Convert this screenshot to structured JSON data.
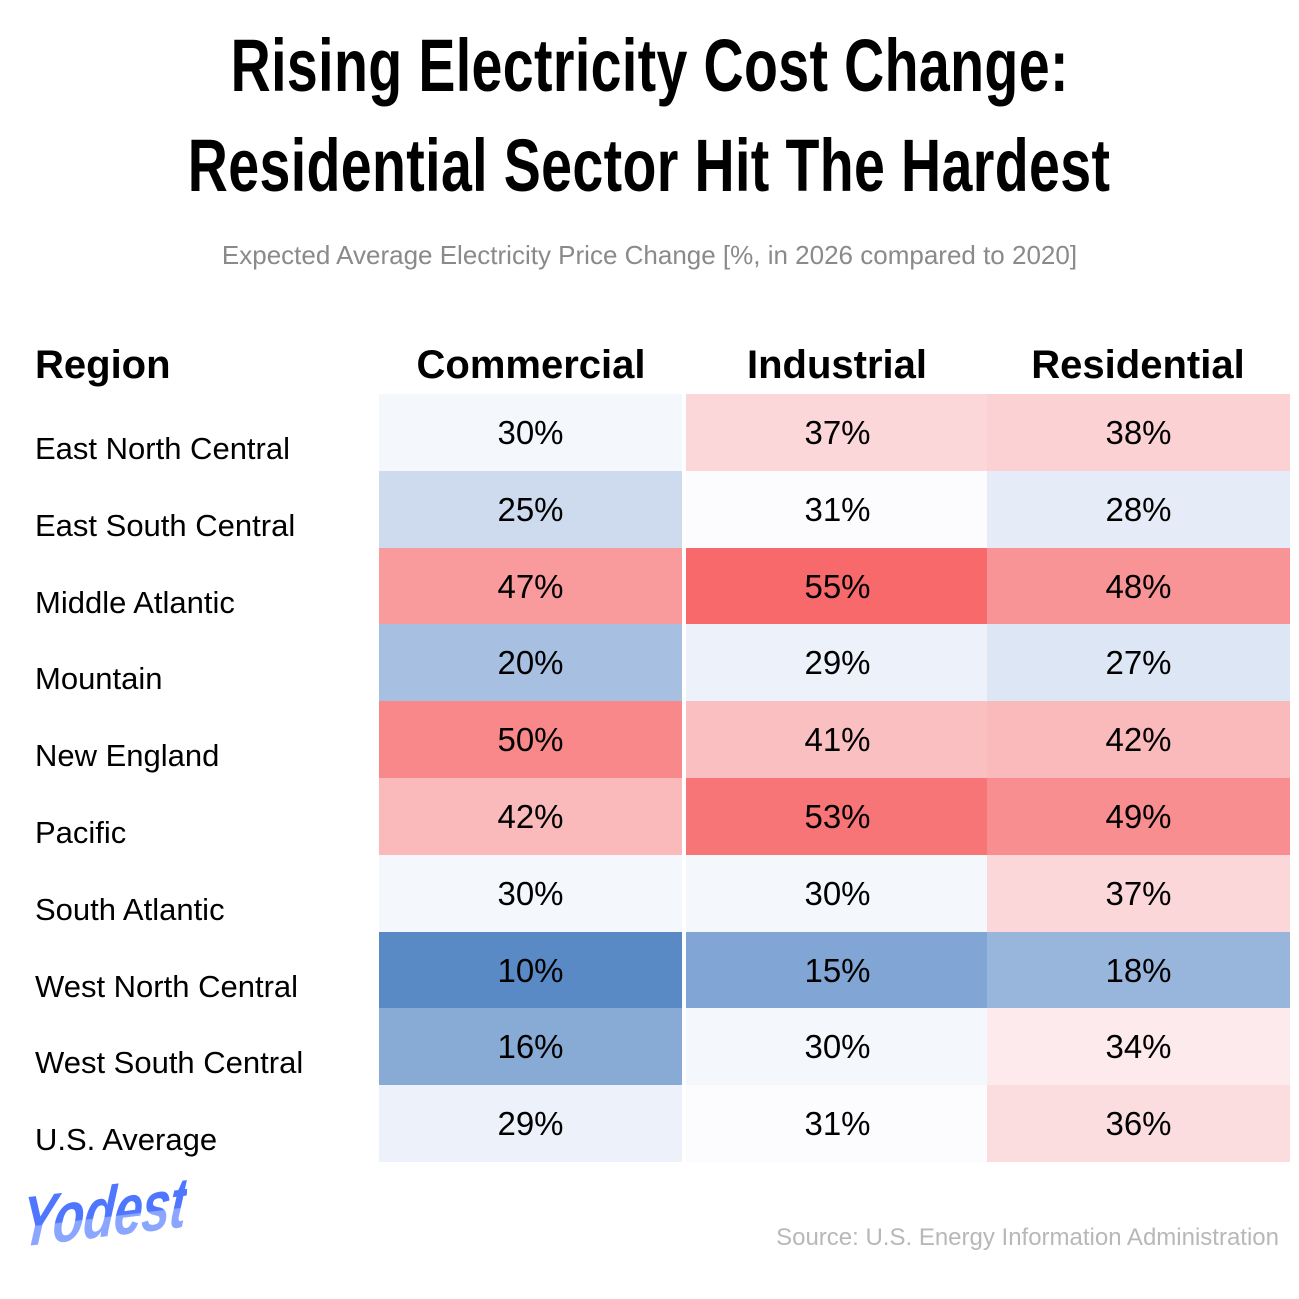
{
  "chart_data": {
    "type": "heatmap",
    "title": [
      "Rising Electricity Cost Change:",
      "Residential Sector Hit The Hardest"
    ],
    "subtitle": "Expected Average Electricity Price Change [%, in 2026 compared to 2020]",
    "row_header": "Region",
    "columns": [
      "Commercial",
      "Industrial",
      "Residential"
    ],
    "rows": [
      "East North Central",
      "East South Central",
      "Middle Atlantic",
      "Mountain",
      "New England",
      "Pacific",
      "South Atlantic",
      "West North Central",
      "West South Central",
      "U.S. Average"
    ],
    "values": [
      [
        30,
        37,
        38
      ],
      [
        25,
        31,
        28
      ],
      [
        47,
        55,
        48
      ],
      [
        20,
        29,
        27
      ],
      [
        50,
        41,
        42
      ],
      [
        42,
        53,
        49
      ],
      [
        30,
        30,
        37
      ],
      [
        10,
        15,
        18
      ],
      [
        16,
        30,
        34
      ],
      [
        29,
        31,
        36
      ]
    ],
    "unit": "%",
    "color_scale": {
      "low": "#5A8AC6",
      "mid": "#FCFCFF",
      "high": "#F8696B"
    }
  },
  "branding": {
    "logo": "Yodest"
  },
  "source": "Source: U.S. Energy Information Administration"
}
